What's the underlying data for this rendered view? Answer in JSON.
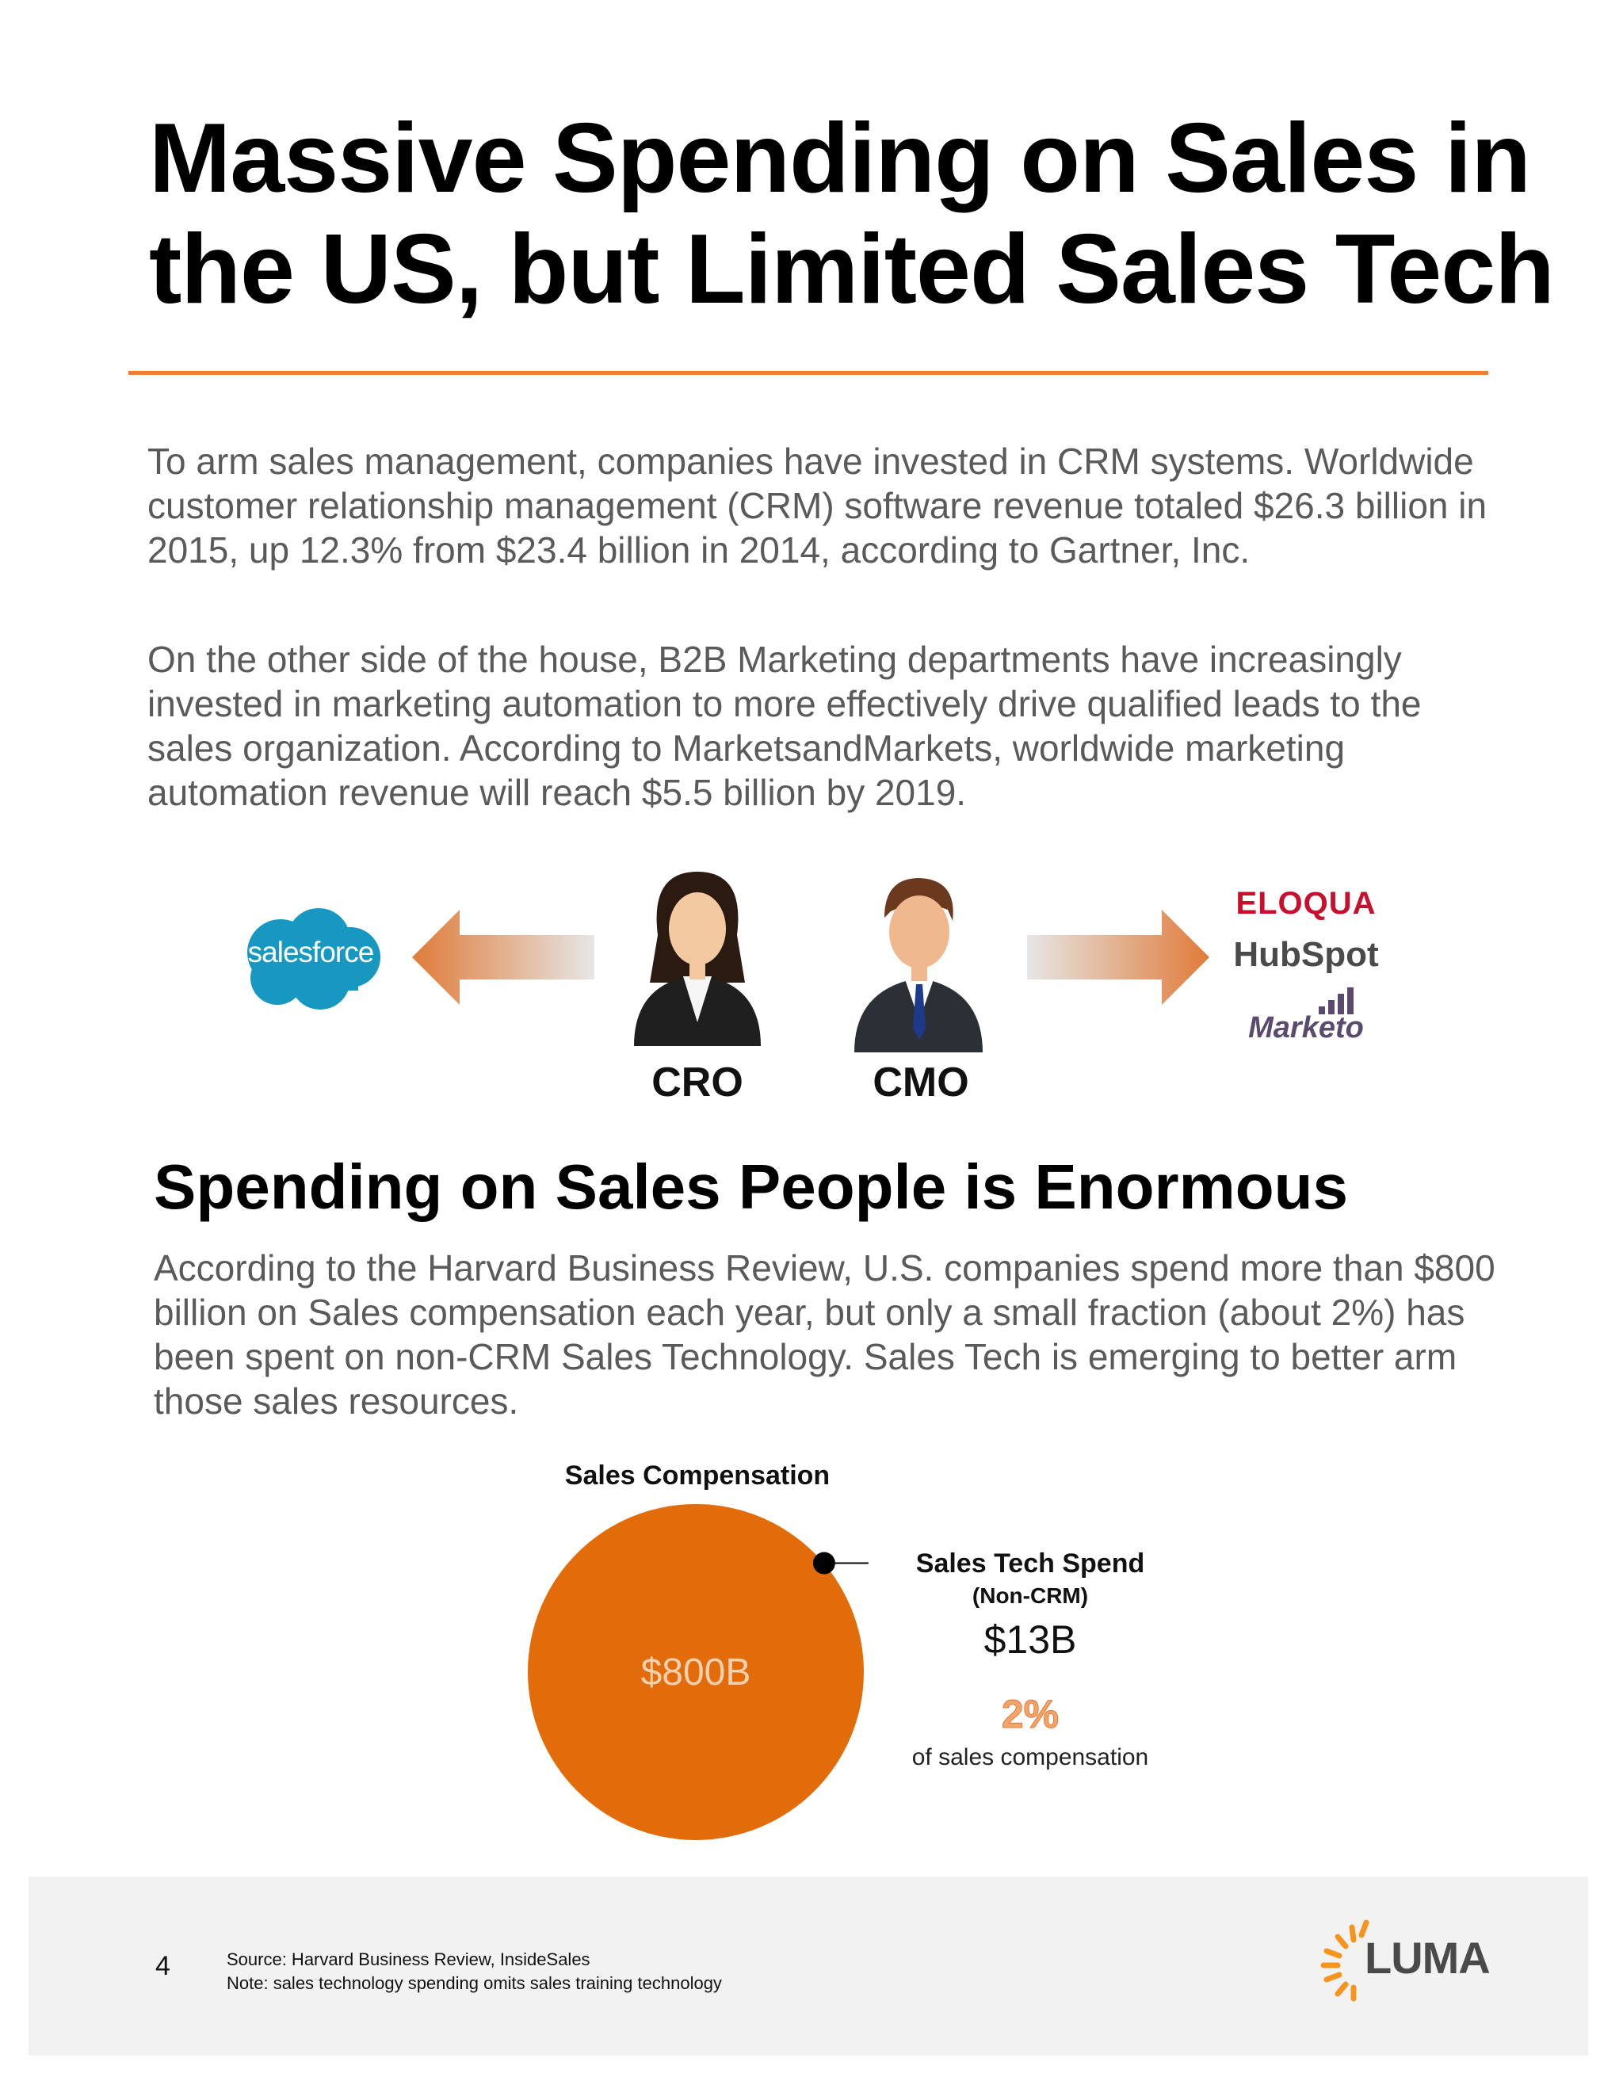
{
  "title": {
    "line1": "Massive Spending on Sales in",
    "line2": "the US, but Limited Sales Tech"
  },
  "paragraphs": [
    "To arm sales management, companies have invested in CRM systems. Worldwide customer relationship management (CRM) software revenue totaled $26.3 billion in 2015, up 12.3% from $23.4 billion in 2014, according to Gartner, Inc.",
    "On the other side of the house, B2B Marketing departments have increasingly invested in marketing automation to more effectively drive qualified leads to the sales organization. According to MarketsandMarkets, worldwide marketing automation revenue will reach $5.5 billion by 2019."
  ],
  "illustration": {
    "salesforce_logo": "salesforce",
    "cro_label": "CRO",
    "cmo_label": "CMO",
    "eloqua_logo": "ELOQUA",
    "hubspot_logo": "HubSpot",
    "marketo_logo": "Marketo",
    "arrow_color": "#e88a4a"
  },
  "section2": {
    "heading": "Spending on Sales People is Enormous",
    "paragraph": "According to the Harvard Business Review, U.S. companies spend more than $800 billion on Sales compensation each year, but only a small fraction (about 2%) has been spent on non-CRM Sales Technology. Sales Tech is emerging to better arm those sales resources."
  },
  "chart_data": {
    "type": "bubble",
    "items": [
      {
        "name": "Sales Compensation",
        "label": "$800B",
        "value": 800,
        "color": "#e36c0a"
      },
      {
        "name": "Sales Tech Spend",
        "subtitle": "(Non-CRM)",
        "label": "$13B",
        "value": 13,
        "color": "#000000"
      }
    ],
    "share_label": "2%",
    "share_text": "of sales compensation"
  },
  "footer": {
    "page_number": "4",
    "source": "Source: Harvard Business Review, InsideSales",
    "note": "Note: sales technology spending omits sales training technology",
    "logo": "LUMA"
  },
  "accent_color": "#ed7d31"
}
